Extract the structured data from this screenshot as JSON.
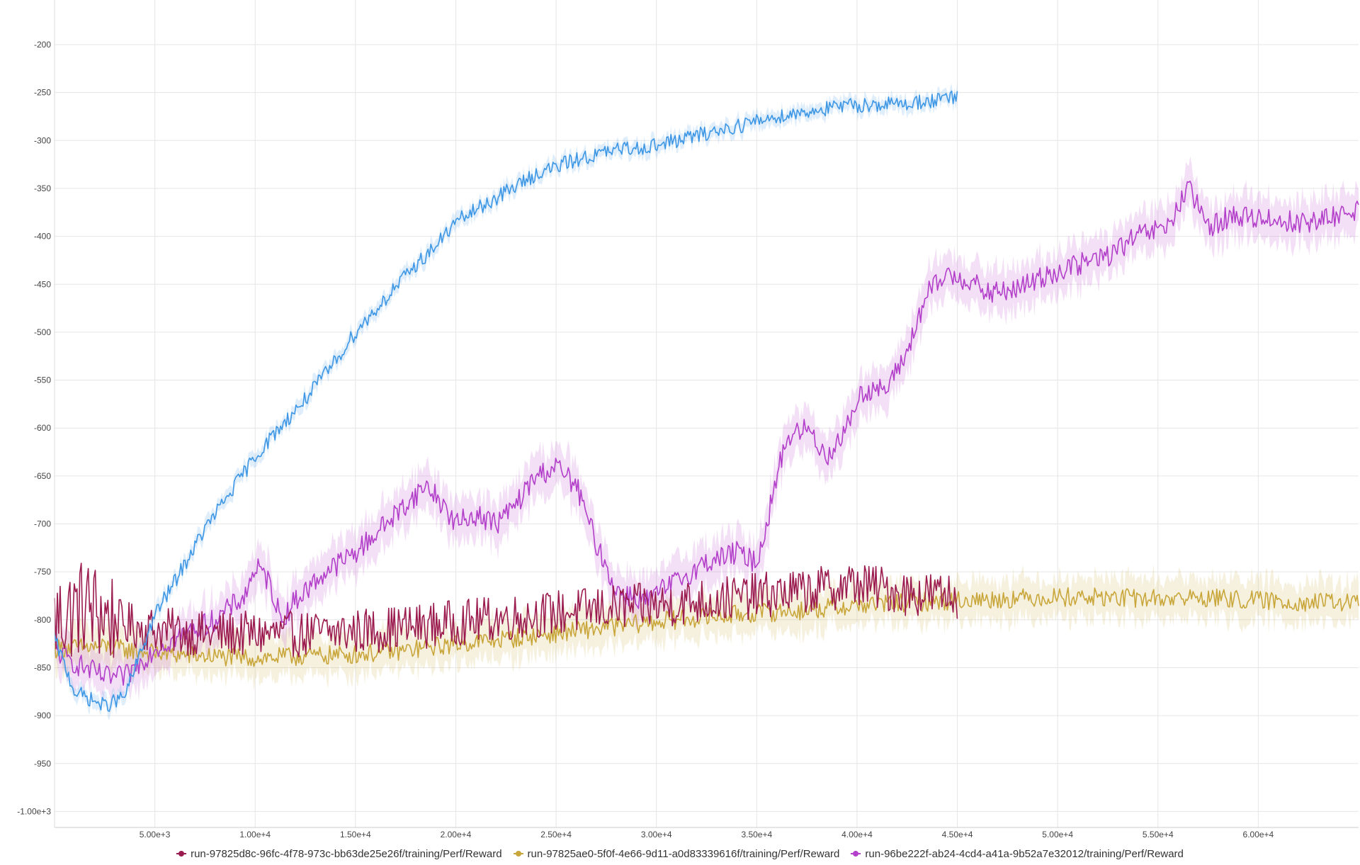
{
  "chart_data": {
    "type": "line",
    "title": "",
    "xlabel": "",
    "ylabel": "",
    "xlim": [
      0,
      65000
    ],
    "ylim": [
      -1000,
      -165
    ],
    "grid": true,
    "legend_position": "bottom",
    "x_ticks": [
      {
        "value": 5000,
        "label": "5.00e+3"
      },
      {
        "value": 10000,
        "label": "1.00e+4"
      },
      {
        "value": 15000,
        "label": "1.50e+4"
      },
      {
        "value": 20000,
        "label": "2.00e+4"
      },
      {
        "value": 25000,
        "label": "2.50e+4"
      },
      {
        "value": 30000,
        "label": "3.00e+4"
      },
      {
        "value": 35000,
        "label": "3.50e+4"
      },
      {
        "value": 40000,
        "label": "4.00e+4"
      },
      {
        "value": 45000,
        "label": "4.50e+4"
      },
      {
        "value": 50000,
        "label": "5.00e+4"
      },
      {
        "value": 55000,
        "label": "5.50e+4"
      },
      {
        "value": 60000,
        "label": "6.00e+4"
      }
    ],
    "y_ticks": [
      {
        "value": -200,
        "label": "-200"
      },
      {
        "value": -250,
        "label": "-250"
      },
      {
        "value": -300,
        "label": "-300"
      },
      {
        "value": -350,
        "label": "-350"
      },
      {
        "value": -400,
        "label": "-400"
      },
      {
        "value": -450,
        "label": "-450"
      },
      {
        "value": -500,
        "label": "-500"
      },
      {
        "value": -550,
        "label": "-550"
      },
      {
        "value": -600,
        "label": "-600"
      },
      {
        "value": -650,
        "label": "-650"
      },
      {
        "value": -700,
        "label": "-700"
      },
      {
        "value": -750,
        "label": "-750"
      },
      {
        "value": -800,
        "label": "-800"
      },
      {
        "value": -850,
        "label": "-850"
      },
      {
        "value": -900,
        "label": "-900"
      },
      {
        "value": -950,
        "label": "-950"
      },
      {
        "value": -1000,
        "label": "-1.00e+3"
      }
    ],
    "series": [
      {
        "name": "run-97825d8c-96fc-4f78-973c-bb63de25e26f/training/Perf/Reward",
        "color": "#9b1b4f",
        "band": 0,
        "noise": 24,
        "x": [
          0,
          1000,
          1500,
          2500,
          3500,
          5000,
          7500,
          10000,
          12500,
          15000,
          17500,
          20000,
          22500,
          25000,
          27500,
          30000,
          32500,
          35000,
          37500,
          40000,
          42500,
          45000
        ],
        "y": [
          -800,
          -790,
          -785,
          -795,
          -805,
          -810,
          -815,
          -815,
          -815,
          -812,
          -808,
          -803,
          -798,
          -793,
          -788,
          -785,
          -780,
          -775,
          -770,
          -763,
          -772,
          -775
        ]
      },
      {
        "name": "run-97825ae0-5f0f-4e66-9d11-a0d83339616f/training/Perf/Reward",
        "color": "#c9a63a",
        "band": 28,
        "noise": 10,
        "x": [
          0,
          2500,
          5000,
          7500,
          10000,
          12500,
          15000,
          17500,
          20000,
          22500,
          25000,
          27500,
          30000,
          32500,
          35000,
          37500,
          40000,
          42500,
          45000,
          47500,
          50000,
          52500,
          55000,
          57500,
          60000,
          62500,
          65000
        ],
        "y": [
          -830,
          -828,
          -835,
          -838,
          -840,
          -838,
          -836,
          -832,
          -825,
          -820,
          -814,
          -808,
          -802,
          -797,
          -793,
          -790,
          -785,
          -782,
          -780,
          -778,
          -776,
          -777,
          -778,
          -777,
          -780,
          -782,
          -782
        ]
      },
      {
        "name": "run-96be222f-ab24-4cd4-a41a-9b52a7e32012/training/Perf/Reward",
        "color": "#b23ec9",
        "band": 30,
        "noise": 12,
        "x": [
          0,
          500,
          1500,
          2500,
          3500,
          4000,
          5000,
          6500,
          8000,
          9500,
          10000,
          10700,
          11300,
          12000,
          13500,
          15000,
          16000,
          17000,
          18500,
          19000,
          20000,
          21000,
          22000,
          23000,
          24000,
          25000,
          26000,
          27000,
          28000,
          29500,
          31000,
          32500,
          34000,
          35000,
          35500,
          36000,
          36500,
          37500,
          38500,
          39500,
          40000,
          40500,
          41500,
          42500,
          43500,
          44500,
          45500,
          46500,
          48000,
          49500,
          51000,
          52500,
          54000,
          55500,
          56500,
          57500,
          58500,
          60000,
          61500,
          63000,
          65000
        ],
        "y": [
          -830,
          -840,
          -850,
          -860,
          -860,
          -850,
          -830,
          -815,
          -800,
          -775,
          -745,
          -760,
          -800,
          -780,
          -750,
          -730,
          -710,
          -690,
          -660,
          -670,
          -700,
          -690,
          -700,
          -680,
          -650,
          -640,
          -660,
          -720,
          -770,
          -780,
          -760,
          -740,
          -730,
          -740,
          -700,
          -650,
          -610,
          -600,
          -630,
          -600,
          -570,
          -560,
          -560,
          -520,
          -460,
          -440,
          -445,
          -460,
          -455,
          -440,
          -430,
          -420,
          -400,
          -390,
          -350,
          -390,
          -380,
          -380,
          -385,
          -385,
          -370
        ]
      },
      {
        "name": "",
        "color": "#3d97e4",
        "band": 10,
        "noise": 8,
        "x": [
          0,
          1000,
          2500,
          3500,
          4200,
          5000,
          6000,
          7500,
          9000,
          10000,
          11000,
          12500,
          14000,
          15000,
          16500,
          18000,
          19000,
          20000,
          22000,
          24000,
          26000,
          28000,
          30000,
          32000,
          34000,
          36000,
          38000,
          40000,
          42000,
          44000,
          45000
        ],
        "y": [
          -820,
          -875,
          -890,
          -880,
          -840,
          -795,
          -760,
          -705,
          -660,
          -630,
          -605,
          -570,
          -530,
          -500,
          -465,
          -430,
          -410,
          -385,
          -360,
          -335,
          -320,
          -310,
          -305,
          -295,
          -285,
          -275,
          -268,
          -263,
          -262,
          -258,
          -255
        ]
      }
    ]
  }
}
